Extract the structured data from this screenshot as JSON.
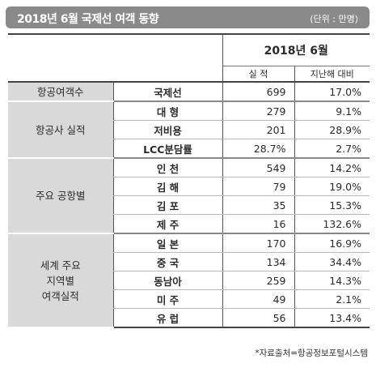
{
  "header": {
    "title": "2018년 6월 국제선 여객 동향",
    "unit": "(단위 : 만명)"
  },
  "table": {
    "period": "2018년 6월",
    "col_actual": "실 적",
    "col_yoy": "지난해 대비",
    "groups": {
      "g1": "항공여객수",
      "g2": "항공사 실적",
      "g3": "주요 공항별",
      "g4": "세계 주요\n지역별\n여객실적"
    },
    "rows": [
      {
        "name": "국제선",
        "actual": "699",
        "yoy": "17.0%"
      },
      {
        "name": "대 형",
        "actual": "279",
        "yoy": "9.1%"
      },
      {
        "name": "저비용",
        "actual": "201",
        "yoy": "28.9%"
      },
      {
        "name": "LCC분담률",
        "actual": "28.7%",
        "yoy": "2.7%"
      },
      {
        "name": "인 천",
        "actual": "549",
        "yoy": "14.2%"
      },
      {
        "name": "김 해",
        "actual": "79",
        "yoy": "19.0%"
      },
      {
        "name": "김 포",
        "actual": "35",
        "yoy": "15.3%"
      },
      {
        "name": "제 주",
        "actual": "16",
        "yoy": "132.6%"
      },
      {
        "name": "일 본",
        "actual": "170",
        "yoy": "16.9%"
      },
      {
        "name": "중 국",
        "actual": "134",
        "yoy": "34.4%"
      },
      {
        "name": "동남아",
        "actual": "259",
        "yoy": "14.3%"
      },
      {
        "name": "미 주",
        "actual": "49",
        "yoy": "2.1%"
      },
      {
        "name": "유 럽",
        "actual": "56",
        "yoy": "13.4%"
      }
    ]
  },
  "source": "*자료출처=항공정보포털시스템"
}
